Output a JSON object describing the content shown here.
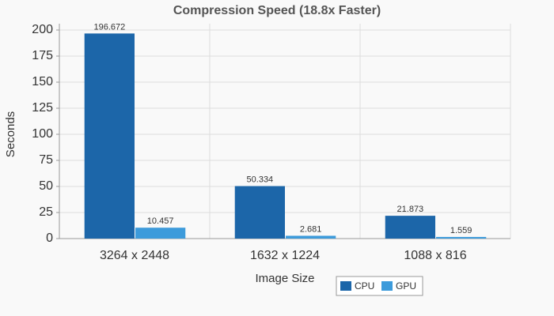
{
  "chart_data": {
    "type": "bar",
    "title": "Compression Speed (18.8x Faster)",
    "x_label": "Image Size",
    "y_label": "Seconds",
    "categories": [
      "3264 x 2448",
      "1632 x 1224",
      "1088 x 816"
    ],
    "series": [
      {
        "name": "CPU",
        "color": "#1c66a9",
        "values": [
          196.672,
          50.334,
          21.873
        ]
      },
      {
        "name": "GPU",
        "color": "#3d9bdb",
        "values": [
          10.457,
          2.681,
          1.559
        ]
      }
    ],
    "ylim": [
      0,
      200
    ],
    "yticks": [
      0,
      25,
      50,
      75,
      100,
      125,
      150,
      175,
      200
    ],
    "grid": true,
    "legend": "bottom"
  }
}
